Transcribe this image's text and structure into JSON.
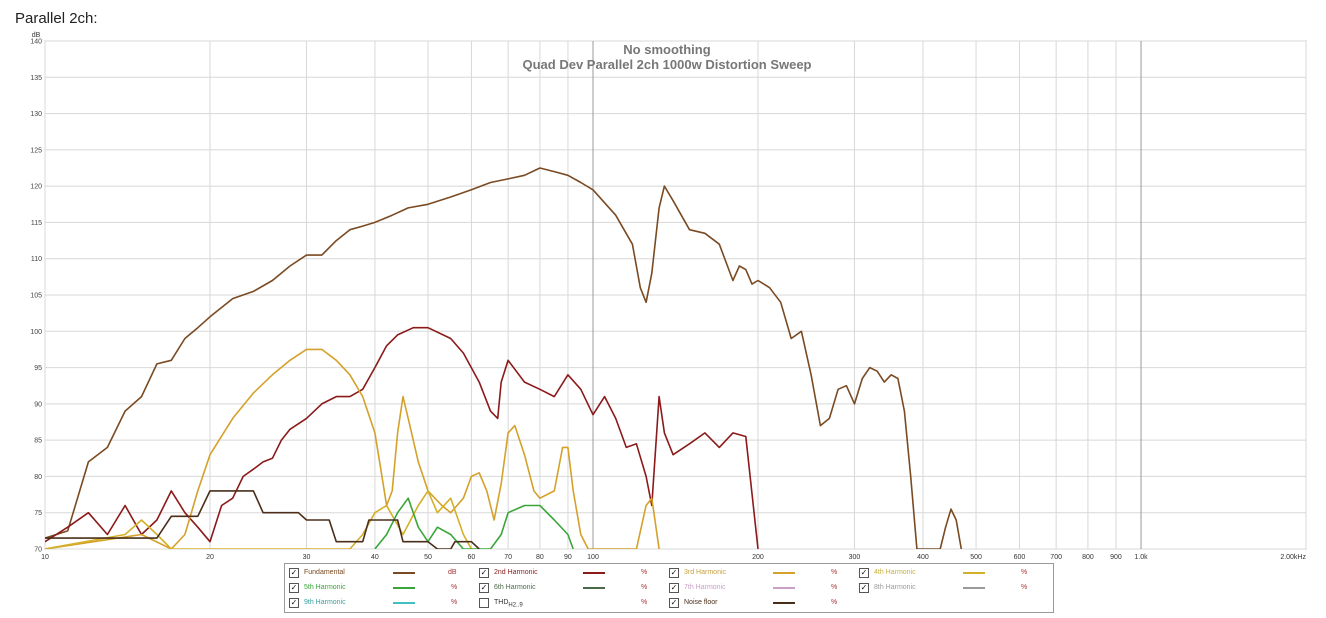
{
  "page": {
    "heading": "Parallel 2ch:"
  },
  "chart_data": {
    "type": "line",
    "title": "No smoothing",
    "subtitle": "Quad Dev Parallel 2ch 1000w Distortion Sweep",
    "ylabel": "dB",
    "xlabel": "",
    "x_scale": "log",
    "xlim": [
      10,
      2000
    ],
    "ylim": [
      70,
      140
    ],
    "grid": true,
    "x_ticks": [
      {
        "v": 10,
        "label": "10"
      },
      {
        "v": 20,
        "label": "20"
      },
      {
        "v": 30,
        "label": "30"
      },
      {
        "v": 40,
        "label": "40"
      },
      {
        "v": 50,
        "label": "50"
      },
      {
        "v": 60,
        "label": "60"
      },
      {
        "v": 70,
        "label": "70"
      },
      {
        "v": 80,
        "label": "80"
      },
      {
        "v": 90,
        "label": "90"
      },
      {
        "v": 100,
        "label": "100"
      },
      {
        "v": 200,
        "label": "200"
      },
      {
        "v": 300,
        "label": "300"
      },
      {
        "v": 400,
        "label": "400"
      },
      {
        "v": 500,
        "label": "500"
      },
      {
        "v": 600,
        "label": "600"
      },
      {
        "v": 700,
        "label": "700"
      },
      {
        "v": 800,
        "label": "800"
      },
      {
        "v": 900,
        "label": "900"
      },
      {
        "v": 1000,
        "label": "1.0k"
      },
      {
        "v": 2000,
        "label": "2.00kHz"
      }
    ],
    "y_ticks": [
      140,
      135,
      130,
      125,
      120,
      115,
      110,
      105,
      100,
      95,
      90,
      85,
      80,
      75,
      70
    ],
    "series": [
      {
        "name": "Fundamental",
        "color": "#7a4a22",
        "points": [
          [
            10,
            71.5
          ],
          [
            11,
            72.5
          ],
          [
            12,
            82
          ],
          [
            13,
            84
          ],
          [
            14,
            89
          ],
          [
            15,
            91
          ],
          [
            16,
            95.5
          ],
          [
            17,
            96
          ],
          [
            18,
            99
          ],
          [
            19,
            100.5
          ],
          [
            20,
            102
          ],
          [
            22,
            104.5
          ],
          [
            24,
            105.5
          ],
          [
            26,
            107
          ],
          [
            28,
            109
          ],
          [
            30,
            110.5
          ],
          [
            32,
            110.5
          ],
          [
            34,
            112.5
          ],
          [
            36,
            114
          ],
          [
            38,
            114.5
          ],
          [
            40,
            115
          ],
          [
            43,
            116
          ],
          [
            46,
            117
          ],
          [
            50,
            117.5
          ],
          [
            55,
            118.5
          ],
          [
            60,
            119.5
          ],
          [
            65,
            120.5
          ],
          [
            70,
            121
          ],
          [
            75,
            121.5
          ],
          [
            80,
            122.5
          ],
          [
            85,
            122
          ],
          [
            90,
            121.5
          ],
          [
            95,
            120.5
          ],
          [
            100,
            119.5
          ],
          [
            110,
            116
          ],
          [
            118,
            112
          ],
          [
            122,
            106
          ],
          [
            125,
            104
          ],
          [
            128,
            108
          ],
          [
            132,
            117
          ],
          [
            135,
            120
          ],
          [
            140,
            118
          ],
          [
            150,
            114
          ],
          [
            160,
            113.5
          ],
          [
            170,
            112
          ],
          [
            180,
            107
          ],
          [
            185,
            109
          ],
          [
            190,
            108.5
          ],
          [
            195,
            106.5
          ],
          [
            200,
            107
          ],
          [
            210,
            106
          ],
          [
            220,
            104
          ],
          [
            230,
            99
          ],
          [
            240,
            100
          ],
          [
            250,
            94
          ],
          [
            260,
            87
          ],
          [
            270,
            88
          ],
          [
            280,
            92
          ],
          [
            290,
            92.5
          ],
          [
            300,
            90
          ],
          [
            310,
            93.5
          ],
          [
            320,
            95
          ],
          [
            330,
            94.5
          ],
          [
            340,
            93
          ],
          [
            350,
            94
          ],
          [
            360,
            93.5
          ],
          [
            370,
            89
          ],
          [
            380,
            80
          ],
          [
            390,
            70
          ],
          [
            430,
            70
          ],
          [
            440,
            73
          ],
          [
            450,
            75.5
          ],
          [
            460,
            74
          ],
          [
            470,
            70
          ]
        ]
      },
      {
        "name": "2nd Harmonic",
        "color": "#8b1a1a",
        "points": [
          [
            10,
            71
          ],
          [
            11,
            73
          ],
          [
            12,
            75
          ],
          [
            13,
            72
          ],
          [
            14,
            76
          ],
          [
            15,
            72
          ],
          [
            16,
            74
          ],
          [
            17,
            78
          ],
          [
            18,
            75
          ],
          [
            19,
            73
          ],
          [
            20,
            71
          ],
          [
            21,
            76
          ],
          [
            22,
            77
          ],
          [
            23,
            80
          ],
          [
            24,
            81
          ],
          [
            25,
            82
          ],
          [
            26,
            82.5
          ],
          [
            27,
            85
          ],
          [
            28,
            86.5
          ],
          [
            30,
            88
          ],
          [
            32,
            90
          ],
          [
            34,
            91
          ],
          [
            36,
            91
          ],
          [
            38,
            92
          ],
          [
            40,
            95
          ],
          [
            42,
            98
          ],
          [
            44,
            99.5
          ],
          [
            47,
            100.5
          ],
          [
            50,
            100.5
          ],
          [
            55,
            99
          ],
          [
            58,
            97
          ],
          [
            62,
            93
          ],
          [
            65,
            89
          ],
          [
            67,
            88
          ],
          [
            68,
            93
          ],
          [
            70,
            96
          ],
          [
            75,
            93
          ],
          [
            80,
            92
          ],
          [
            85,
            91
          ],
          [
            90,
            94
          ],
          [
            95,
            92
          ],
          [
            100,
            88.5
          ],
          [
            105,
            91
          ],
          [
            110,
            88
          ],
          [
            115,
            84
          ],
          [
            120,
            84.5
          ],
          [
            125,
            80
          ],
          [
            128,
            76
          ],
          [
            132,
            91
          ],
          [
            135,
            86
          ],
          [
            140,
            83
          ],
          [
            150,
            84.5
          ],
          [
            160,
            86
          ],
          [
            170,
            84
          ],
          [
            180,
            86
          ],
          [
            190,
            85.5
          ],
          [
            200,
            70
          ]
        ]
      },
      {
        "name": "3rd Harmonic",
        "color": "#d4a12a",
        "points": [
          [
            10,
            70
          ],
          [
            15,
            72
          ],
          [
            17,
            70
          ],
          [
            18,
            72
          ],
          [
            19,
            78
          ],
          [
            20,
            83
          ],
          [
            22,
            88
          ],
          [
            24,
            91.5
          ],
          [
            26,
            94
          ],
          [
            28,
            96
          ],
          [
            30,
            97.5
          ],
          [
            32,
            97.5
          ],
          [
            34,
            96
          ],
          [
            36,
            94
          ],
          [
            38,
            91
          ],
          [
            40,
            86
          ],
          [
            41,
            81
          ],
          [
            42,
            76
          ],
          [
            43,
            78
          ],
          [
            44,
            86
          ],
          [
            45,
            91
          ],
          [
            46,
            88
          ],
          [
            48,
            82
          ],
          [
            50,
            78
          ],
          [
            53,
            76
          ],
          [
            55,
            75
          ],
          [
            58,
            77
          ],
          [
            60,
            80
          ],
          [
            62,
            80.5
          ],
          [
            64,
            78
          ],
          [
            66,
            74
          ],
          [
            68,
            79
          ],
          [
            70,
            86
          ],
          [
            72,
            87
          ],
          [
            75,
            83
          ],
          [
            78,
            78
          ],
          [
            80,
            77
          ],
          [
            85,
            78
          ],
          [
            88,
            84
          ],
          [
            90,
            84
          ],
          [
            92,
            78
          ],
          [
            95,
            72
          ],
          [
            98,
            70
          ],
          [
            120,
            70
          ],
          [
            125,
            76
          ],
          [
            128,
            77
          ],
          [
            132,
            70
          ]
        ]
      },
      {
        "name": "4th Harmonic",
        "color": "#d4b028",
        "points": [
          [
            10,
            70
          ],
          [
            14,
            72
          ],
          [
            15,
            74
          ],
          [
            16,
            72
          ],
          [
            17,
            70
          ],
          [
            36,
            70
          ],
          [
            38,
            72
          ],
          [
            40,
            75
          ],
          [
            42,
            76
          ],
          [
            45,
            72
          ],
          [
            48,
            76
          ],
          [
            50,
            78
          ],
          [
            52,
            75
          ],
          [
            55,
            77
          ],
          [
            58,
            72
          ],
          [
            60,
            70
          ]
        ]
      },
      {
        "name": "5th Harmonic",
        "color": "#3aa63a",
        "points": [
          [
            40,
            70
          ],
          [
            42,
            72
          ],
          [
            44,
            75
          ],
          [
            46,
            77
          ],
          [
            48,
            73
          ],
          [
            50,
            71
          ],
          [
            52,
            73
          ],
          [
            55,
            72
          ],
          [
            58,
            70
          ],
          [
            65,
            70
          ],
          [
            68,
            72
          ],
          [
            70,
            75
          ],
          [
            75,
            76
          ],
          [
            80,
            76
          ],
          [
            85,
            74
          ],
          [
            90,
            72
          ],
          [
            92,
            70
          ]
        ]
      },
      {
        "name": "Noise floor",
        "color": "#4a2e1a",
        "points": [
          [
            10,
            71.5
          ],
          [
            14,
            71.5
          ],
          [
            16,
            71.5
          ],
          [
            17,
            74.5
          ],
          [
            19,
            74.5
          ],
          [
            20,
            78
          ],
          [
            22,
            78
          ],
          [
            24,
            78
          ],
          [
            25,
            75
          ],
          [
            29,
            75
          ],
          [
            30,
            74
          ],
          [
            33,
            74
          ],
          [
            34,
            71
          ],
          [
            38,
            71
          ],
          [
            39,
            74
          ],
          [
            44,
            74
          ],
          [
            45,
            71
          ],
          [
            50,
            71
          ],
          [
            52,
            70
          ],
          [
            55,
            70
          ],
          [
            56,
            71
          ],
          [
            60,
            71
          ],
          [
            62,
            70
          ]
        ]
      }
    ]
  },
  "legend": [
    {
      "label": "Fundamental",
      "checked": true,
      "unit": "dB",
      "color": "#7a4a22",
      "label_color": "#7a4a22"
    },
    {
      "label": "2nd Harmonic",
      "checked": true,
      "unit": "%",
      "color": "#8b1a1a",
      "label_color": "#8b1a1a"
    },
    {
      "label": "3rd Harmonic",
      "checked": true,
      "unit": "%",
      "color": "#d4a12a",
      "label_color": "#c9a040"
    },
    {
      "label": "4th Harmonic",
      "checked": true,
      "unit": "%",
      "color": "#d4b028",
      "label_color": "#c9b040"
    },
    {
      "label": "5th Harmonic",
      "checked": true,
      "unit": "%",
      "color": "#3aa63a",
      "label_color": "#3aa63a"
    },
    {
      "label": "6th Harmonic",
      "checked": true,
      "unit": "%",
      "color": "#4a6a4a",
      "label_color": "#4a6a4a"
    },
    {
      "label": "7th Harmonic",
      "checked": true,
      "unit": "%",
      "color": "#c8a0c8",
      "label_color": "#c8a0c8"
    },
    {
      "label": "8th Harmonic",
      "checked": true,
      "unit": "%",
      "color": "#9a9a9a",
      "label_color": "#9a9a9a"
    },
    {
      "label": "9th Harmonic",
      "checked": true,
      "unit": "%",
      "color": "#40c0c0",
      "label_color": "#3aa0a0"
    },
    {
      "label": "THD",
      "sub": "H2..9",
      "checked": false,
      "unit": "%",
      "color": "",
      "label_color": "#333333"
    },
    {
      "label": "Noise floor",
      "checked": true,
      "unit": "%",
      "color": "#4a2e1a",
      "label_color": "#4a2e1a"
    }
  ]
}
